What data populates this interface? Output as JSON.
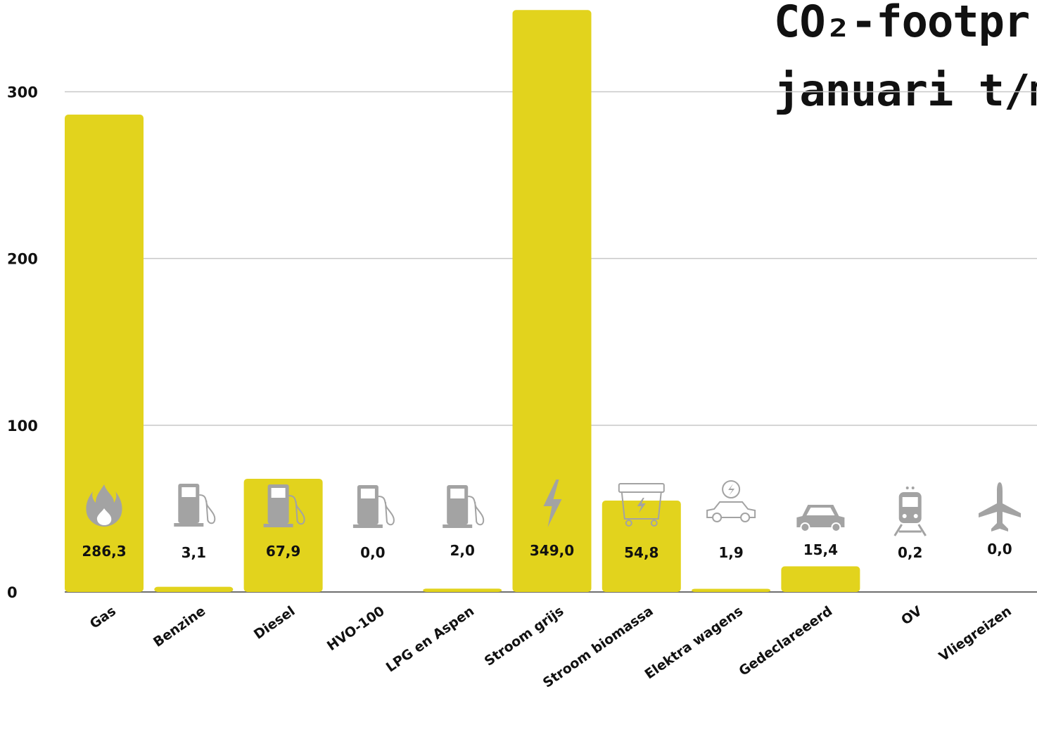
{
  "title": {
    "line1": "CO₂-footpr",
    "line2": "januari t/m"
  },
  "colors": {
    "bar": "#e2d31d",
    "icon": "#a3a3a3",
    "gridline": "#c8c8c8",
    "axis": "#6e6e6e",
    "text": "#111111"
  },
  "chart_data": {
    "type": "bar",
    "categories": [
      "Gas",
      "Benzine",
      "Diesel",
      "HVO-100",
      "LPG en Aspen",
      "Stroom grijs",
      "Stroom biomassa",
      "Elektra wagens",
      "Gedeclareeerd",
      "OV",
      "Vliegreizen"
    ],
    "values": [
      286.3,
      3.1,
      67.9,
      0.0,
      2.0,
      349.0,
      54.8,
      1.9,
      15.4,
      0.2,
      0.0
    ],
    "data_labels": [
      "286,3",
      "3,1",
      "67,9",
      "0,0",
      "2,0",
      "349,0",
      "54,8",
      "1,9",
      "15,4",
      "0,2",
      "0,0"
    ],
    "icons": [
      "flame-icon",
      "fuel-pump-icon",
      "fuel-pump-icon",
      "fuel-pump-icon",
      "fuel-pump-icon",
      "lightning-icon",
      "waste-container-icon",
      "electric-car-icon",
      "car-icon",
      "train-icon",
      "airplane-icon"
    ],
    "yticks": [
      "0",
      "100",
      "200",
      "300"
    ],
    "ylim": [
      0,
      360
    ],
    "grid": true,
    "xlabel": "",
    "ylabel": ""
  }
}
